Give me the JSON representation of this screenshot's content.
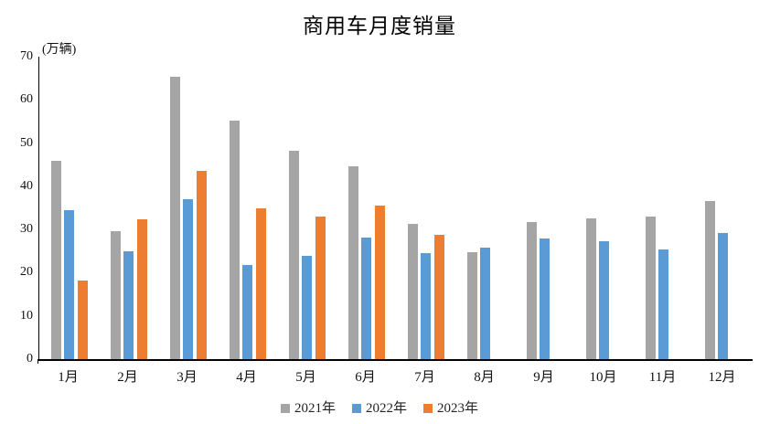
{
  "chart_data": {
    "type": "bar",
    "title": "商用车月度销量",
    "unit_label": "(万辆)",
    "categories": [
      "1月",
      "2月",
      "3月",
      "4月",
      "5月",
      "6月",
      "7月",
      "8月",
      "9月",
      "10月",
      "11月",
      "12月"
    ],
    "series": [
      {
        "name": "2021年",
        "color": "#A5A5A5",
        "values": [
          45.9,
          29.7,
          65.3,
          55.1,
          48.2,
          44.7,
          31.3,
          24.8,
          31.8,
          32.6,
          33.0,
          36.5
        ]
      },
      {
        "name": "2022年",
        "color": "#5B9BD5",
        "values": [
          34.5,
          25.0,
          37.0,
          21.7,
          23.9,
          28.1,
          24.6,
          25.9,
          27.9,
          27.3,
          25.4,
          29.2
        ]
      },
      {
        "name": "2023年",
        "color": "#ED7D31",
        "values": [
          18.1,
          32.4,
          43.6,
          34.9,
          33.0,
          35.5,
          28.8,
          null,
          null,
          null,
          null,
          null
        ]
      }
    ],
    "ylim": [
      0,
      70
    ],
    "yticks": [
      0,
      10,
      20,
      30,
      40,
      50,
      60,
      70
    ],
    "grid": false,
    "legend_position": "bottom",
    "axis_color": "#000000",
    "background_color": "#ffffff"
  }
}
